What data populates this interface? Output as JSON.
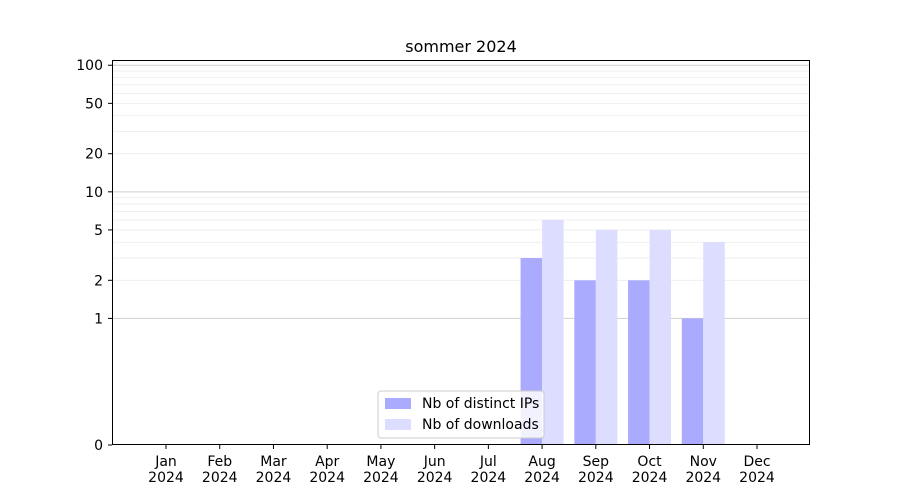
{
  "chart_data": {
    "type": "bar",
    "title": "sommer 2024",
    "xlabel": "",
    "ylabel": "",
    "yscale": "symlog",
    "ylim": [
      0,
      110
    ],
    "yticks": [
      0,
      1,
      2,
      5,
      10,
      20,
      50,
      100
    ],
    "categories": [
      [
        "Jan",
        "2024"
      ],
      [
        "Feb",
        "2024"
      ],
      [
        "Mar",
        "2024"
      ],
      [
        "Apr",
        "2024"
      ],
      [
        "May",
        "2024"
      ],
      [
        "Jun",
        "2024"
      ],
      [
        "Jul",
        "2024"
      ],
      [
        "Aug",
        "2024"
      ],
      [
        "Sep",
        "2024"
      ],
      [
        "Oct",
        "2024"
      ],
      [
        "Nov",
        "2024"
      ],
      [
        "Dec",
        "2024"
      ]
    ],
    "series": [
      {
        "name": "Nb of distinct IPs",
        "color": "#aaaaff",
        "values": [
          0,
          0,
          0,
          0,
          0,
          0,
          0,
          3,
          2,
          2,
          1,
          0
        ]
      },
      {
        "name": "Nb of downloads",
        "color": "#ddddff",
        "values": [
          0,
          0,
          0,
          0,
          0,
          0,
          0,
          6,
          5,
          5,
          4,
          0
        ]
      }
    ],
    "legend_position": "lower center",
    "grid": "y"
  }
}
